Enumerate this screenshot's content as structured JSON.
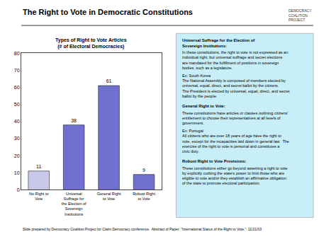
{
  "chart_data": {
    "type": "bar",
    "title": "The Right to Vote in Democratic Constitutions",
    "subtitle": "Types of Right to Vote Articles\n(# of Electoral Democracies)",
    "categories": [
      "No Right to\nVote",
      "Universal\nSuffrage for\nthe Election of\nSovereign\nInstitutions",
      "General Right\nto Vote",
      "Robust Right\nto Vote"
    ],
    "values": [
      11,
      38,
      61,
      9
    ],
    "colors": [
      "#c8c8e8",
      "#7070d0",
      "#7070d0",
      "#7070d0"
    ],
    "ylim": [
      0,
      80
    ],
    "yticks": [
      0,
      10,
      20,
      30,
      40,
      50,
      60,
      70,
      80
    ],
    "grid": false,
    "data_labels": true,
    "annotations": [
      "DEMOCRACY\nCOALITION\nPROJECT",
      "Universal Suffrage for the Election of\nSovereign Institutions:",
      "In these constitutions, the right to vote is not expressed as an individual right, but universal suffrage and secret elections are mandated for the fulfillment of positions in sovereign bodies, such as a legislature.\n\nEx: South Korea\nThe National Assembly is composed of members elected by universal, equal, direct, and secret ballot by the citizens.  The President is elected by universal, equal, direct, and secret ballot by the people.",
      "General Right to Vote:",
      "These constitutions have articles or clauses outlining citizens' entitlement to choose their representatives at all levels of government.\n\nEx: Portugal\nAll citizens who are over 18 years of age have the right to vote, except for the incapacities laid down in general law.  The exercise of the right to vote is personal and constitutes a civic duty.",
      "Robust Right to Vote Provisions:",
      "These constitutions either go beyond asserting a right to vote by explicitly curbing the state's power to limit those who are eligible to vote and/or they establish an affirmative obligation of the state to promote electoral participation.",
      "Slide prepared by Democracy Coalition Project for Claim Democracy conference.  Abstract of Paper: \"International Status of the Right to Vote.\": 11/21/03"
    ]
  }
}
